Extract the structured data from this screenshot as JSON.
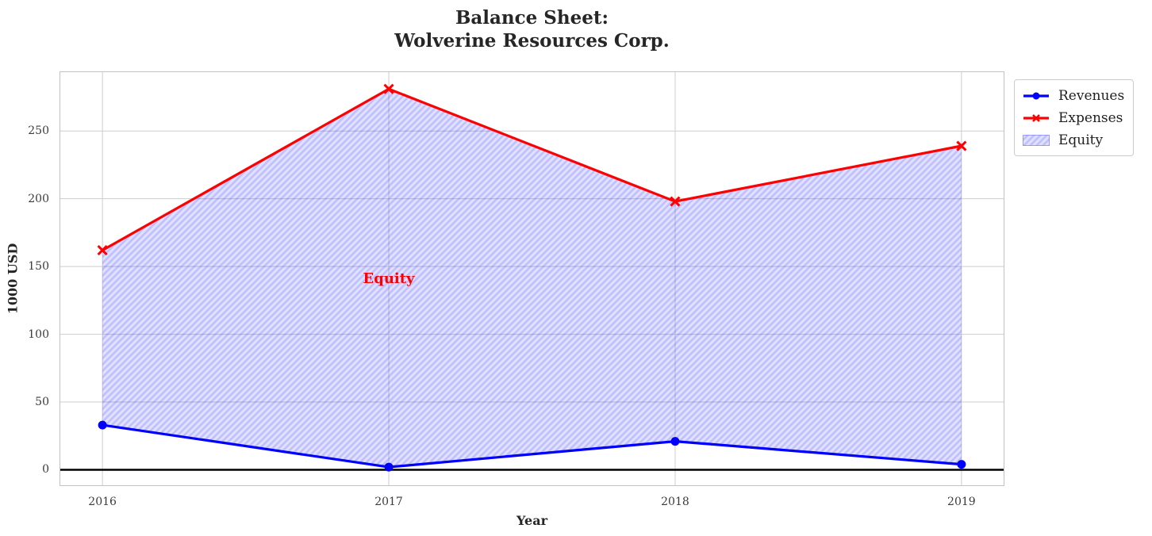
{
  "header": {
    "line1": "Balance Sheet:",
    "line2": "Wolverine Resources Corp."
  },
  "chart_data": {
    "type": "line",
    "title": "Balance Sheet:\nWolverine Resources Corp.",
    "xlabel": "Year",
    "ylabel": "1000 USD",
    "x": [
      2016,
      2017,
      2018,
      2019
    ],
    "series": [
      {
        "name": "Revenues",
        "values": [
          33,
          2,
          21,
          4
        ],
        "color": "#0000ff",
        "marker": "circle"
      },
      {
        "name": "Expenses",
        "values": [
          162,
          281,
          198,
          239
        ],
        "color": "#ff0000",
        "marker": "x"
      }
    ],
    "fill_between": {
      "name": "Equity",
      "between": [
        "Revenues",
        "Expenses"
      ],
      "hatch": "/",
      "base_color": "#0000ff",
      "fill_opacity": 0.12,
      "hatch_opacity": 0.14
    },
    "annotation": {
      "text": "Equity",
      "x": 2017,
      "y": 141,
      "color": "#ff0000"
    },
    "xticks": [
      "2016",
      "2017",
      "2018",
      "2019"
    ],
    "yticks": [
      0,
      50,
      100,
      150,
      200,
      250
    ],
    "xlim": [
      2015.85,
      2019.15
    ],
    "ylim": [
      -12,
      294
    ],
    "grid": true,
    "grid_color": "#cdcdcd",
    "spine_color": "#c2c2c2",
    "zero_line": true,
    "zero_line_color": "#000000",
    "legend_position": "upper-right-outside",
    "legend_entries": [
      "Revenues",
      "Expenses",
      "Equity"
    ]
  }
}
